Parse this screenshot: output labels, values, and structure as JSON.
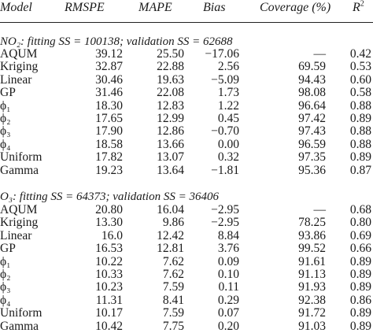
{
  "header": {
    "model": "Model",
    "rmspe": "RMSPE",
    "mape": "MAPE",
    "bias": "Bias",
    "coverage": "Coverage (%)",
    "r2": "R",
    "r2_sup": "2"
  },
  "sections": [
    {
      "title": "NO₂: fitting SS = 100138; validation SS = 62688",
      "rows": [
        {
          "model": "AQUM",
          "rmspe": "39.12",
          "mape": "25.50",
          "bias": "−17.06",
          "coverage": "—",
          "r2": "0.42"
        },
        {
          "model": "Kriging",
          "rmspe": "32.87",
          "mape": "22.88",
          "bias": "2.56",
          "coverage": "69.59",
          "r2": "0.53"
        },
        {
          "model": "Linear",
          "rmspe": "30.46",
          "mape": "19.63",
          "bias": "−5.09",
          "coverage": "94.43",
          "r2": "0.60"
        },
        {
          "model": "GP",
          "rmspe": "31.46",
          "mape": "22.08",
          "bias": "1.73",
          "coverage": "98.08",
          "r2": "0.58"
        },
        {
          "model": "ϕ₁",
          "rmspe": "18.30",
          "mape": "12.83",
          "bias": "1.22",
          "coverage": "96.64",
          "r2": "0.88"
        },
        {
          "model": "ϕ₂",
          "rmspe": "17.65",
          "mape": "12.99",
          "bias": "0.45",
          "coverage": "97.42",
          "r2": "0.89"
        },
        {
          "model": "ϕ₃",
          "rmspe": "17.90",
          "mape": "12.86",
          "bias": "−0.70",
          "coverage": "97.43",
          "r2": "0.88"
        },
        {
          "model": "ϕ₄",
          "rmspe": "18.58",
          "mape": "13.66",
          "bias": "0.00",
          "coverage": "96.59",
          "r2": "0.88"
        },
        {
          "model": "Uniform",
          "rmspe": "17.82",
          "mape": "13.07",
          "bias": "0.32",
          "coverage": "97.35",
          "r2": "0.89"
        },
        {
          "model": "Gamma",
          "rmspe": "19.23",
          "mape": "13.64",
          "bias": "−1.81",
          "coverage": "95.36",
          "r2": "0.87"
        }
      ]
    },
    {
      "title": "O₃: fitting SS = 64373; validation SS = 36406",
      "rows": [
        {
          "model": "AQUM",
          "rmspe": "20.80",
          "mape": "16.04",
          "bias": "−2.95",
          "coverage": "—",
          "r2": "0.68"
        },
        {
          "model": "Kriging",
          "rmspe": "13.30",
          "mape": "9.86",
          "bias": "−2.95",
          "coverage": "78.25",
          "r2": "0.80"
        },
        {
          "model": "Linear",
          "rmspe": "16.0",
          "mape": "12.42",
          "bias": "8.84",
          "coverage": "93.86",
          "r2": "0.69"
        },
        {
          "model": "GP",
          "rmspe": "16.53",
          "mape": "12.81",
          "bias": "3.76",
          "coverage": "99.52",
          "r2": "0.66"
        },
        {
          "model": "ϕ₁",
          "rmspe": "10.22",
          "mape": "7.62",
          "bias": "0.09",
          "coverage": "91.61",
          "r2": "0.89"
        },
        {
          "model": "ϕ₂",
          "rmspe": "10.33",
          "mape": "7.62",
          "bias": "0.10",
          "coverage": "91.13",
          "r2": "0.89"
        },
        {
          "model": "ϕ₃",
          "rmspe": "10.23",
          "mape": "7.59",
          "bias": "0.11",
          "coverage": "91.93",
          "r2": "0.89"
        },
        {
          "model": "ϕ₄",
          "rmspe": "11.31",
          "mape": "8.41",
          "bias": "0.29",
          "coverage": "92.38",
          "r2": "0.86"
        },
        {
          "model": "Uniform",
          "rmspe": "10.17",
          "mape": "7.59",
          "bias": "0.07",
          "coverage": "91.72",
          "r2": "0.89"
        },
        {
          "model": "Gamma",
          "rmspe": "10.42",
          "mape": "7.75",
          "bias": "0.20",
          "coverage": "91.03",
          "r2": "0.89"
        }
      ]
    }
  ]
}
